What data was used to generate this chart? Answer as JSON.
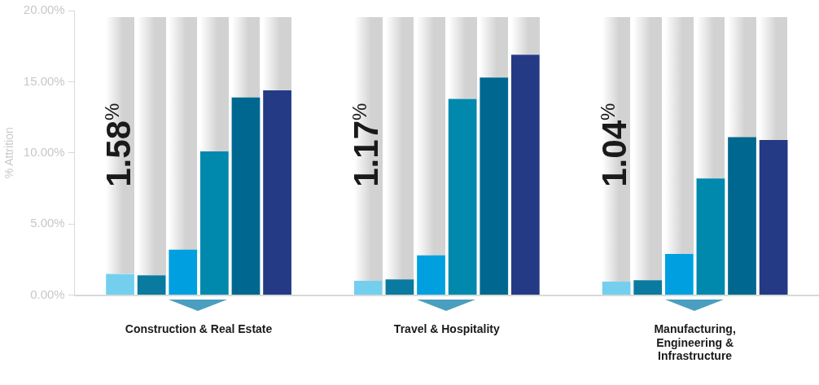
{
  "chart_data": {
    "type": "bar",
    "categories": [
      "Construction & Real Estate",
      "Travel & Hospitality",
      "Manufacturing,\nEngineering &\nInfrastructure"
    ],
    "ylabel": "% Attrition",
    "ylim": [
      0,
      20
    ],
    "yticks": [
      {
        "value": 0,
        "label": "0.00%"
      },
      {
        "value": 5,
        "label": "5.00%"
      },
      {
        "value": 10,
        "label": "10.00%"
      },
      {
        "value": 15,
        "label": "15.00%"
      },
      {
        "value": 20,
        "label": "20.00%"
      }
    ],
    "series": [
      {
        "color": "#74cfee",
        "values": [
          1.5,
          1.0,
          0.95
        ]
      },
      {
        "color": "#0a7aa0",
        "values": [
          1.4,
          1.1,
          1.05
        ]
      },
      {
        "color": "#00a0e0",
        "values": [
          3.2,
          2.8,
          2.9
        ]
      },
      {
        "color": "#0088ad",
        "values": [
          10.1,
          13.8,
          8.2
        ]
      },
      {
        "color": "#006890",
        "values": [
          13.9,
          15.3,
          11.1
        ]
      },
      {
        "color": "#243a85",
        "values": [
          14.4,
          16.9,
          10.9
        ]
      }
    ],
    "annotations": [
      "1.58$^{%}$",
      "1.17$^{%}$",
      "1.04$^{%}$"
    ],
    "grid": false,
    "legend": false
  }
}
